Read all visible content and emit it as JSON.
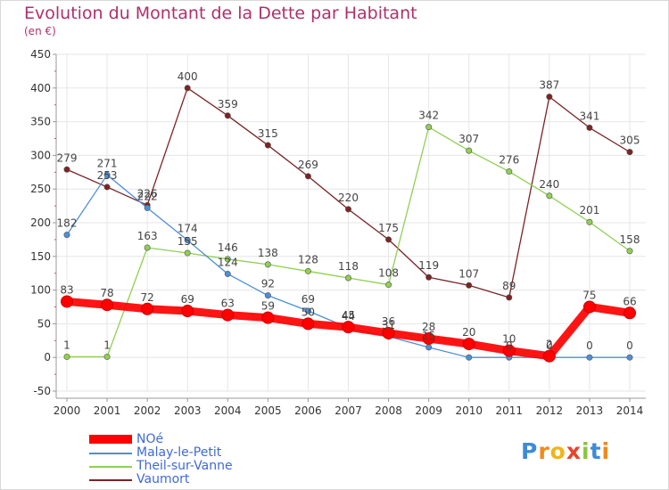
{
  "header": {
    "title": "Evolution du Montant de la Dette par Habitant",
    "subtitle": "(en €)"
  },
  "logo": {
    "letters": [
      "P",
      "r",
      "o",
      "x",
      "i",
      "t",
      "i"
    ],
    "colors": [
      "#3d8bd8",
      "#f08a1c",
      "#f0b41c",
      "#e8442a",
      "#8cc43c",
      "#3d8bd8",
      "#f08a1c"
    ]
  },
  "colors": {
    "grid": "#e6e6e6",
    "axis": "#999999",
    "tick_text": "#333333",
    "label_text": "#444444"
  },
  "chart_data": {
    "type": "line",
    "title": "Evolution du Montant de la Dette par Habitant",
    "subtitle": "(en €)",
    "x": [
      "2000",
      "2001",
      "2002",
      "2003",
      "2004",
      "2005",
      "2006",
      "2007",
      "2008",
      "2009",
      "2010",
      "2011",
      "2012",
      "2013",
      "2014"
    ],
    "ylim": [
      -50,
      450
    ],
    "yticks": [
      -50,
      0,
      50,
      100,
      150,
      200,
      250,
      300,
      350,
      400,
      450
    ],
    "grid": true,
    "legend_position": "bottom-left",
    "series": [
      {
        "name": "NOé",
        "color": "#ff0000",
        "values": [
          83,
          78,
          72,
          69,
          63,
          59,
          50,
          45,
          36,
          28,
          20,
          10,
          2,
          75,
          66
        ],
        "labels": [
          "83",
          "78",
          "72",
          "69",
          "63",
          "59",
          "50",
          "45",
          "36",
          "28",
          "20",
          "10",
          "2",
          "75",
          "66"
        ]
      },
      {
        "name": "Malay-le-Petit",
        "color": "#4d8fd6",
        "values": [
          182,
          271,
          222,
          174,
          124,
          92,
          69,
          44,
          31,
          15,
          0,
          0,
          0,
          0,
          0
        ],
        "labels": [
          "182",
          "271",
          "222",
          "174",
          "124",
          "92",
          "69",
          "44",
          "31",
          "15",
          "",
          "0",
          "0",
          "0",
          "0"
        ]
      },
      {
        "name": "Theil-sur-Vanne",
        "color": "#8fd052",
        "values": [
          1,
          1,
          163,
          155,
          146,
          138,
          128,
          118,
          108,
          342,
          307,
          276,
          240,
          201,
          158
        ],
        "labels": [
          "1",
          "1",
          "163",
          "155",
          "146",
          "138",
          "128",
          "118",
          "108",
          "342",
          "307",
          "276",
          "240",
          "201",
          "158"
        ]
      },
      {
        "name": "Vaumort",
        "color": "#7a2424",
        "values": [
          279,
          253,
          226,
          400,
          359,
          315,
          269,
          220,
          175,
          119,
          107,
          89,
          387,
          341,
          305
        ],
        "labels": [
          "279",
          "253",
          "226",
          "400",
          "359",
          "315",
          "269",
          "220",
          "175",
          "119",
          "107",
          "89",
          "387",
          "341",
          "305"
        ]
      }
    ]
  }
}
